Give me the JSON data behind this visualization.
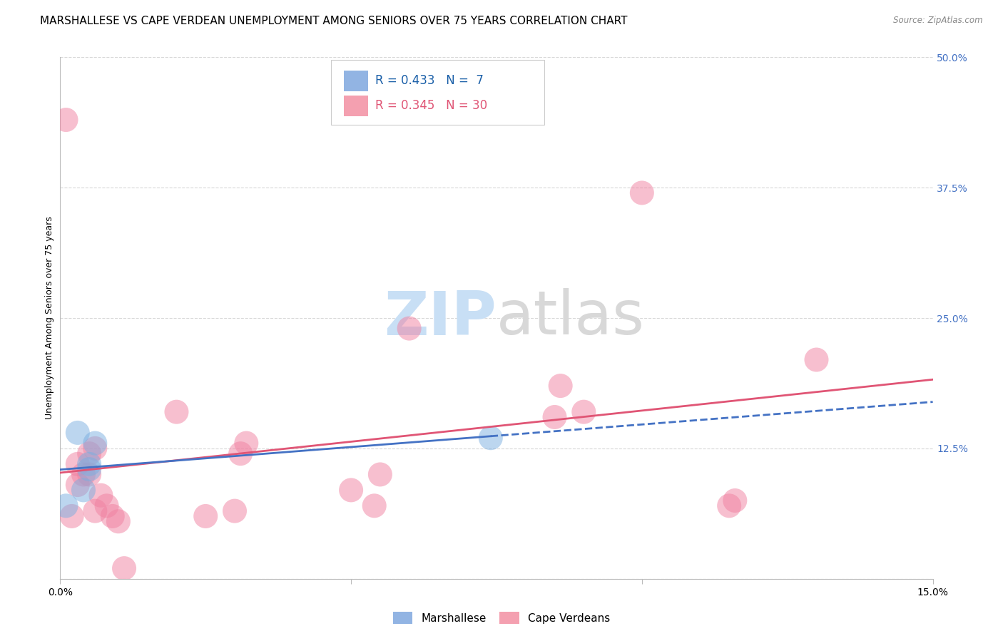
{
  "title": "MARSHALLESE VS CAPE VERDEAN UNEMPLOYMENT AMONG SENIORS OVER 75 YEARS CORRELATION CHART",
  "source": "Source: ZipAtlas.com",
  "ylabel": "Unemployment Among Seniors over 75 years",
  "xlim": [
    0.0,
    0.15
  ],
  "ylim": [
    0.0,
    0.5
  ],
  "xticks": [
    0.0,
    0.05,
    0.1,
    0.15
  ],
  "xtick_labels": [
    "0.0%",
    "",
    "",
    "15.0%"
  ],
  "ytick_labels_right": [
    "50.0%",
    "37.5%",
    "25.0%",
    "12.5%",
    ""
  ],
  "ytick_positions_right": [
    0.5,
    0.375,
    0.25,
    0.125,
    0.0
  ],
  "marshallese_color": "#92b4e3",
  "cape_verdean_color": "#f4a0b0",
  "marshallese_scatter_color": "#7aaee0",
  "cape_verdean_scatter_color": "#f080a0",
  "trendline_marshallese_color": "#4472c4",
  "trendline_cape_verdean_color": "#e05575",
  "legend_text_color_blue": "#1a5fa8",
  "legend_text_color_pink": "#e05575",
  "R_marshallese": 0.433,
  "N_marshallese": 7,
  "R_cape_verdean": 0.345,
  "N_cape_verdean": 30,
  "marshallese_x": [
    0.001,
    0.003,
    0.004,
    0.005,
    0.005,
    0.006,
    0.074
  ],
  "marshallese_y": [
    0.07,
    0.14,
    0.085,
    0.11,
    0.105,
    0.13,
    0.135
  ],
  "cape_verdean_x": [
    0.001,
    0.002,
    0.003,
    0.003,
    0.004,
    0.005,
    0.005,
    0.006,
    0.006,
    0.007,
    0.008,
    0.009,
    0.01,
    0.011,
    0.02,
    0.025,
    0.03,
    0.031,
    0.032,
    0.05,
    0.054,
    0.055,
    0.06,
    0.085,
    0.086,
    0.09,
    0.1,
    0.115,
    0.116,
    0.13
  ],
  "cape_verdean_y": [
    0.44,
    0.06,
    0.09,
    0.11,
    0.1,
    0.1,
    0.12,
    0.125,
    0.065,
    0.08,
    0.07,
    0.06,
    0.055,
    0.01,
    0.16,
    0.06,
    0.065,
    0.12,
    0.13,
    0.085,
    0.07,
    0.1,
    0.24,
    0.155,
    0.185,
    0.16,
    0.37,
    0.07,
    0.075,
    0.21
  ],
  "background_color": "#ffffff",
  "grid_color": "#d8d8d8",
  "watermark_zip_color": "#c8dff5",
  "watermark_atlas_color": "#d8d8d8",
  "title_fontsize": 11,
  "axis_label_fontsize": 9,
  "tick_fontsize": 10,
  "legend_fontsize": 12,
  "right_tick_color": "#4472c4"
}
